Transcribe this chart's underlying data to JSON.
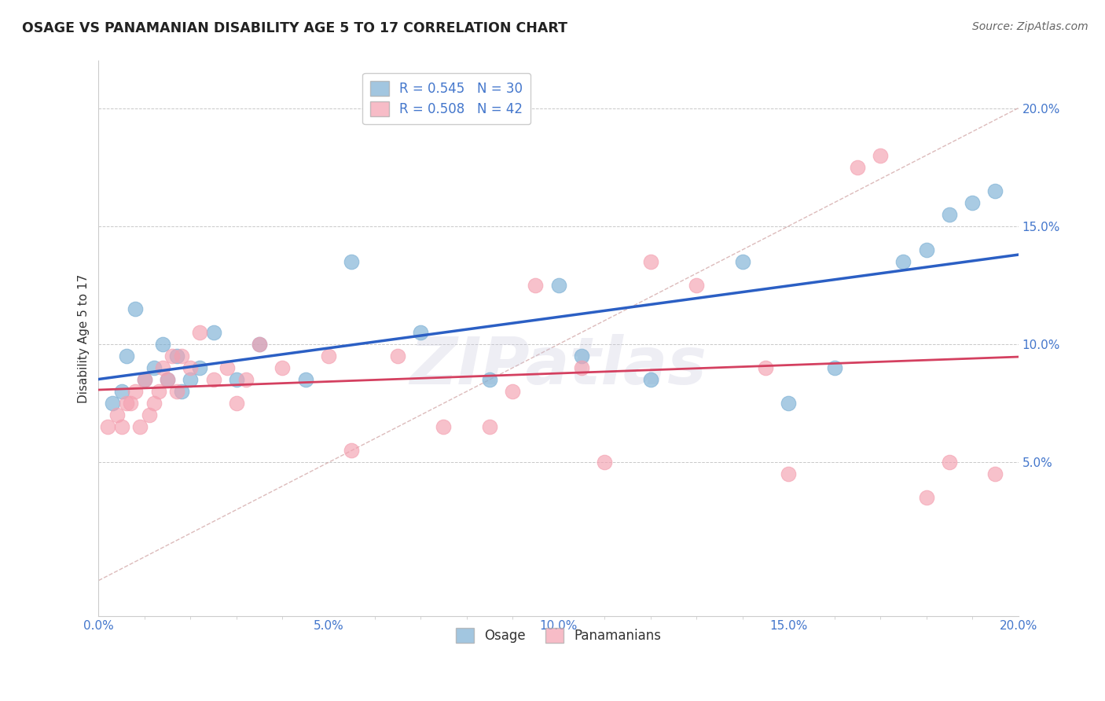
{
  "title": "OSAGE VS PANAMANIAN DISABILITY AGE 5 TO 17 CORRELATION CHART",
  "source": "Source: ZipAtlas.com",
  "ylabel_label": "Disability Age 5 to 17",
  "osage_color": "#7BAFD4",
  "panamanian_color": "#F4A0B0",
  "osage_R": 0.545,
  "osage_N": 30,
  "panamanian_R": 0.508,
  "panamanian_N": 42,
  "trend_blue": "#2B5FC4",
  "trend_pink": "#D44060",
  "ref_line_color": "#D4AAAA",
  "watermark": "ZIPatlas",
  "tick_color": "#4477CC",
  "osage_x": [
    0.3,
    0.5,
    0.6,
    0.8,
    1.0,
    1.2,
    1.4,
    1.5,
    1.7,
    1.8,
    2.0,
    2.2,
    2.5,
    3.0,
    3.5,
    4.5,
    5.5,
    7.0,
    8.5,
    10.0,
    10.5,
    12.0,
    14.0,
    15.0,
    16.0,
    17.5,
    18.0,
    18.5,
    19.0,
    19.5
  ],
  "osage_y": [
    7.5,
    8.0,
    9.5,
    11.5,
    8.5,
    9.0,
    10.0,
    8.5,
    9.5,
    8.0,
    8.5,
    9.0,
    10.5,
    8.5,
    10.0,
    8.5,
    13.5,
    10.5,
    8.5,
    12.5,
    9.5,
    8.5,
    13.5,
    7.5,
    9.0,
    13.5,
    14.0,
    15.5,
    16.0,
    16.5
  ],
  "panamanian_x": [
    0.2,
    0.4,
    0.5,
    0.6,
    0.7,
    0.8,
    0.9,
    1.0,
    1.1,
    1.2,
    1.3,
    1.4,
    1.5,
    1.6,
    1.7,
    1.8,
    2.0,
    2.2,
    2.5,
    2.8,
    3.0,
    3.2,
    3.5,
    4.0,
    5.0,
    5.5,
    6.5,
    7.5,
    8.5,
    9.0,
    9.5,
    10.5,
    11.0,
    12.0,
    13.0,
    14.5,
    15.0,
    16.5,
    17.0,
    18.0,
    18.5,
    19.5
  ],
  "panamanian_y": [
    6.5,
    7.0,
    6.5,
    7.5,
    7.5,
    8.0,
    6.5,
    8.5,
    7.0,
    7.5,
    8.0,
    9.0,
    8.5,
    9.5,
    8.0,
    9.5,
    9.0,
    10.5,
    8.5,
    9.0,
    7.5,
    8.5,
    10.0,
    9.0,
    9.5,
    5.5,
    9.5,
    6.5,
    6.5,
    8.0,
    12.5,
    9.0,
    5.0,
    13.5,
    12.5,
    9.0,
    4.5,
    17.5,
    18.0,
    3.5,
    5.0,
    4.5
  ],
  "xlim": [
    0,
    20
  ],
  "ylim": [
    -1.5,
    22
  ],
  "xtick_vals": [
    0,
    5,
    10,
    15,
    20
  ],
  "ytick_vals": [
    5,
    10,
    15,
    20
  ]
}
